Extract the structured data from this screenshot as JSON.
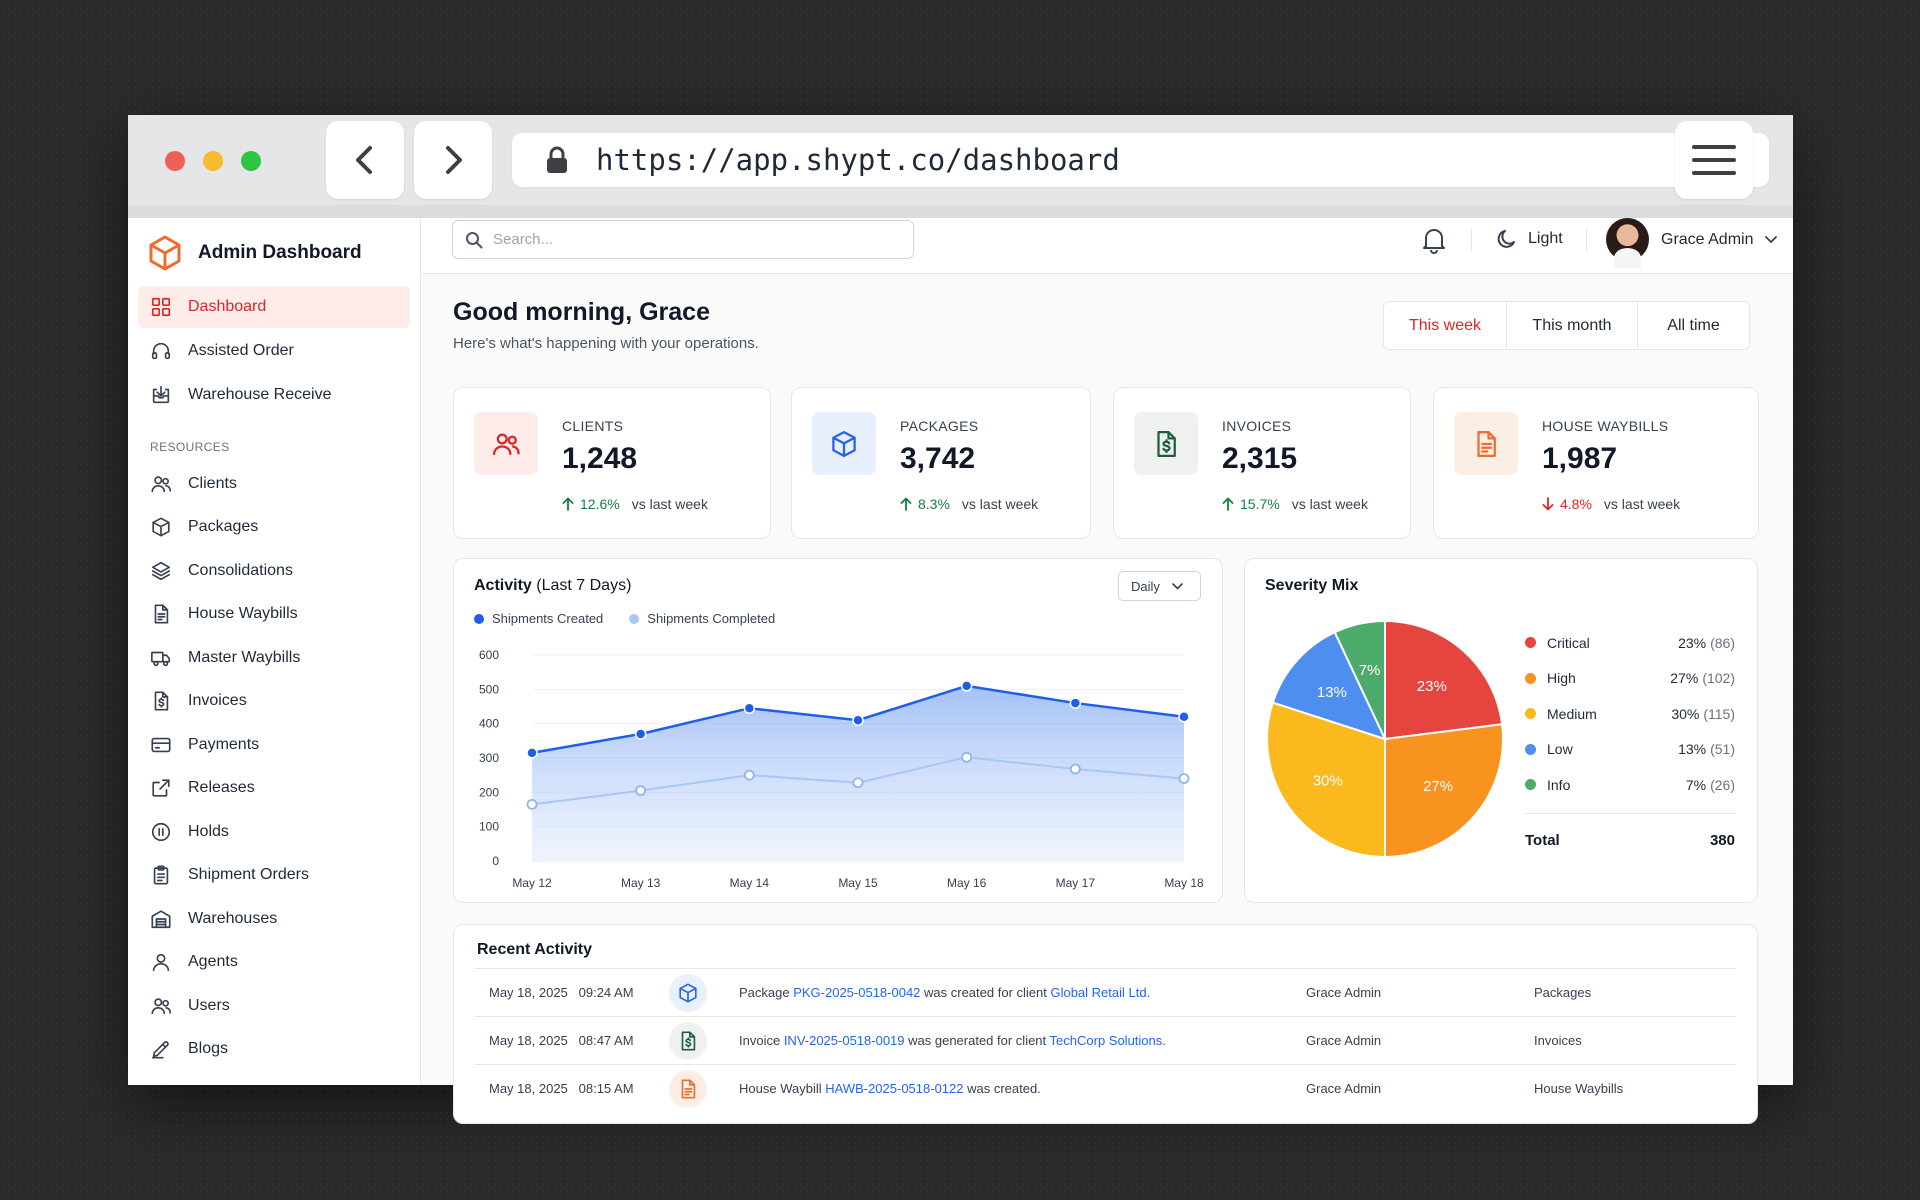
{
  "browser": {
    "url": "https://app.shypt.co/dashboard"
  },
  "brand": {
    "title": "Admin Dashboard"
  },
  "nav": {
    "primary": [
      {
        "label": "Dashboard",
        "icon": "grid-icon",
        "active": true
      },
      {
        "label": "Assisted Order",
        "icon": "headset-icon"
      },
      {
        "label": "Warehouse Receive",
        "icon": "inbox-download-icon"
      }
    ],
    "section_label": "RESOURCES",
    "resources": [
      {
        "label": "Clients",
        "icon": "users-icon"
      },
      {
        "label": "Packages",
        "icon": "box-icon"
      },
      {
        "label": "Consolidations",
        "icon": "layers-icon"
      },
      {
        "label": "House Waybills",
        "icon": "document-icon"
      },
      {
        "label": "Master Waybills",
        "icon": "truck-icon"
      },
      {
        "label": "Invoices",
        "icon": "invoice-icon"
      },
      {
        "label": "Payments",
        "icon": "credit-card-icon"
      },
      {
        "label": "Releases",
        "icon": "external-link-icon"
      },
      {
        "label": "Holds",
        "icon": "pause-circle-icon"
      },
      {
        "label": "Shipment Orders",
        "icon": "clipboard-icon"
      },
      {
        "label": "Warehouses",
        "icon": "warehouse-icon"
      },
      {
        "label": "Agents",
        "icon": "user-icon"
      },
      {
        "label": "Users",
        "icon": "users-icon"
      },
      {
        "label": "Blogs",
        "icon": "pen-icon"
      }
    ]
  },
  "topbar": {
    "search_placeholder": "Search...",
    "theme_label": "Light",
    "user_name": "Grace Admin"
  },
  "greeting": {
    "title": "Good morning, Grace",
    "subtitle": "Here's what's happening with your operations."
  },
  "range_tabs": [
    {
      "label": "This week",
      "active": true
    },
    {
      "label": "This month"
    },
    {
      "label": "All time"
    }
  ],
  "stats": [
    {
      "label": "CLIENTS",
      "value": "1,248",
      "change": "12.6%",
      "direction": "up",
      "vs": "vs last week",
      "icon": "users-icon"
    },
    {
      "label": "PACKAGES",
      "value": "3,742",
      "change": "8.3%",
      "direction": "up",
      "vs": "vs last week",
      "icon": "box-icon"
    },
    {
      "label": "INVOICES",
      "value": "2,315",
      "change": "15.7%",
      "direction": "up",
      "vs": "vs last week",
      "icon": "invoice-icon"
    },
    {
      "label": "HOUSE WAYBILLS",
      "value": "1,987",
      "change": "4.8%",
      "direction": "down",
      "vs": "vs last week",
      "icon": "document-icon"
    }
  ],
  "activity": {
    "title": "Activity",
    "title_suffix": "(Last 7 Days)",
    "dropdown": "Daily"
  },
  "severity": {
    "title": "Severity Mix"
  },
  "recent": {
    "title": "Recent Activity",
    "rows": [
      {
        "date": "May 18, 2025",
        "time": "09:24 AM",
        "icon": "box-icon",
        "pre": "Package ",
        "link1": "PKG-2025-0518-0042",
        "mid": " was created for client ",
        "link2": "Global Retail Ltd.",
        "post": "",
        "by": "Grace Admin",
        "module": "Packages"
      },
      {
        "date": "May 18, 2025",
        "time": "08:47 AM",
        "icon": "invoice-icon",
        "pre": "Invoice ",
        "link1": "INV-2025-0518-0019",
        "mid": " was generated for client ",
        "link2": "TechCorp Solutions.",
        "post": "",
        "by": "Grace Admin",
        "module": "Invoices"
      },
      {
        "date": "May 18, 2025",
        "time": "08:15 AM",
        "icon": "document-icon",
        "pre": "House Waybill ",
        "link1": "HAWB-2025-0518-0122",
        "mid": " was created.",
        "link2": "",
        "post": "",
        "by": "Grace Admin",
        "module": "House Waybills"
      }
    ]
  },
  "chart_data": [
    {
      "type": "area",
      "title": "Activity (Last 7 Days)",
      "categories": [
        "May 12",
        "May 13",
        "May 14",
        "May 15",
        "May 16",
        "May 17",
        "May 18"
      ],
      "series": [
        {
          "name": "Shipments Created",
          "values": [
            315,
            370,
            445,
            410,
            510,
            460,
            420
          ],
          "color": "#1d5fe8"
        },
        {
          "name": "Shipments Completed",
          "values": [
            165,
            205,
            250,
            228,
            302,
            268,
            240
          ],
          "color": "#a9c7f5"
        }
      ],
      "ylim": [
        0,
        600
      ],
      "yticks": [
        0,
        100,
        200,
        300,
        400,
        500,
        600
      ],
      "grid": true,
      "legend": "top-left"
    },
    {
      "type": "pie",
      "title": "Severity Mix",
      "slices": [
        {
          "name": "Critical",
          "pct": 23,
          "count": 86,
          "color": "#e5443f"
        },
        {
          "name": "High",
          "pct": 27,
          "count": 102,
          "color": "#f7931e"
        },
        {
          "name": "Medium",
          "pct": 30,
          "count": 115,
          "color": "#fbb91d"
        },
        {
          "name": "Low",
          "pct": 13,
          "count": 51,
          "color": "#4d8ef0"
        },
        {
          "name": "Info",
          "pct": 7,
          "count": 26,
          "color": "#4caa6a"
        }
      ],
      "total_label": "Total",
      "total": 380,
      "legend": "right"
    }
  ]
}
